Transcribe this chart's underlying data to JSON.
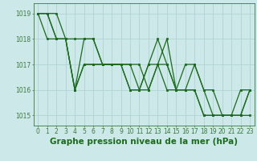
{
  "bg_color": "#cce8e8",
  "grid_color": "#aacfcf",
  "line_color": "#1a6b1a",
  "marker_color": "#1a6b1a",
  "xlabel": "Graphe pression niveau de la mer (hPa)",
  "xlabel_color": "#1a6b1a",
  "tick_color": "#3a7a3a",
  "xlim": [
    -0.5,
    23.5
  ],
  "ylim": [
    1014.6,
    1019.4
  ],
  "yticks": [
    1015,
    1016,
    1017,
    1018,
    1019
  ],
  "xticks": [
    0,
    1,
    2,
    3,
    4,
    5,
    6,
    7,
    8,
    9,
    10,
    11,
    12,
    13,
    14,
    15,
    16,
    17,
    18,
    19,
    20,
    21,
    22,
    23
  ],
  "lines": [
    [
      1019,
      1019,
      1018,
      1018,
      1016,
      1017,
      1017,
      1017,
      1017,
      1017,
      1016,
      1016,
      1017,
      1018,
      1017,
      1016,
      1016,
      1017,
      1016,
      1015,
      1015,
      1015,
      1016,
      1016
    ],
    [
      1019,
      1019,
      1018,
      1018,
      1016,
      1018,
      1018,
      1017,
      1017,
      1017,
      1017,
      1016,
      1017,
      1017,
      1018,
      1016,
      1016,
      1016,
      1015,
      1015,
      1015,
      1015,
      1015,
      1016
    ],
    [
      1019,
      1019,
      1019,
      1018,
      1018,
      1018,
      1018,
      1017,
      1017,
      1017,
      1017,
      1017,
      1016,
      1017,
      1017,
      1016,
      1017,
      1017,
      1016,
      1016,
      1015,
      1015,
      1015,
      1016
    ],
    [
      1019,
      1018,
      1018,
      1018,
      1016,
      1017,
      1017,
      1017,
      1017,
      1017,
      1016,
      1016,
      1016,
      1017,
      1016,
      1016,
      1016,
      1016,
      1015,
      1015,
      1015,
      1015,
      1015,
      1015
    ]
  ],
  "tick_fontsize": 5.5,
  "xlabel_fontsize": 7.5,
  "linewidth": 0.9,
  "markersize": 1.6
}
